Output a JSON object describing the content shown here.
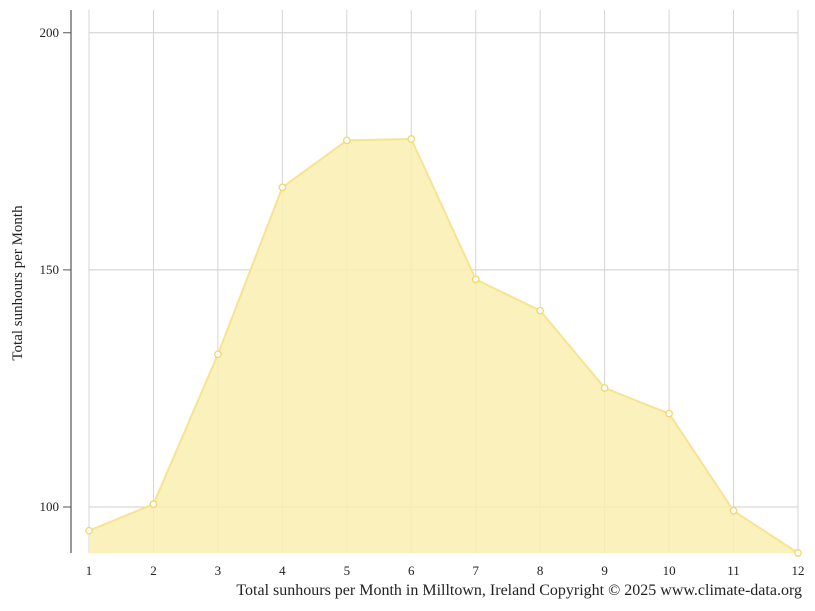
{
  "chart_data": {
    "type": "area",
    "x": [
      1,
      2,
      3,
      4,
      5,
      6,
      7,
      8,
      9,
      10,
      11,
      12
    ],
    "series": [
      {
        "values": [
          95.0,
          100.6,
          132.2,
          167.4,
          177.3,
          177.6,
          148.0,
          141.4,
          125.1,
          119.7,
          99.2,
          90.3
        ]
      }
    ],
    "ylabel": "Total sunhours per Month",
    "xlabel": "",
    "caption": "Total sunhours per Month in Milltown, Ireland Copyright © 2025 www.climate-data.org",
    "yticks": [
      100,
      150,
      200
    ],
    "xticks": [
      1,
      2,
      3,
      4,
      5,
      6,
      7,
      8,
      9,
      10,
      11,
      12
    ],
    "ylim": [
      90.3,
      204.8
    ],
    "grid": true,
    "fill_color": "#f9eeb0",
    "line_color": "#f7e48f",
    "marker_color": "#f2d86a"
  }
}
